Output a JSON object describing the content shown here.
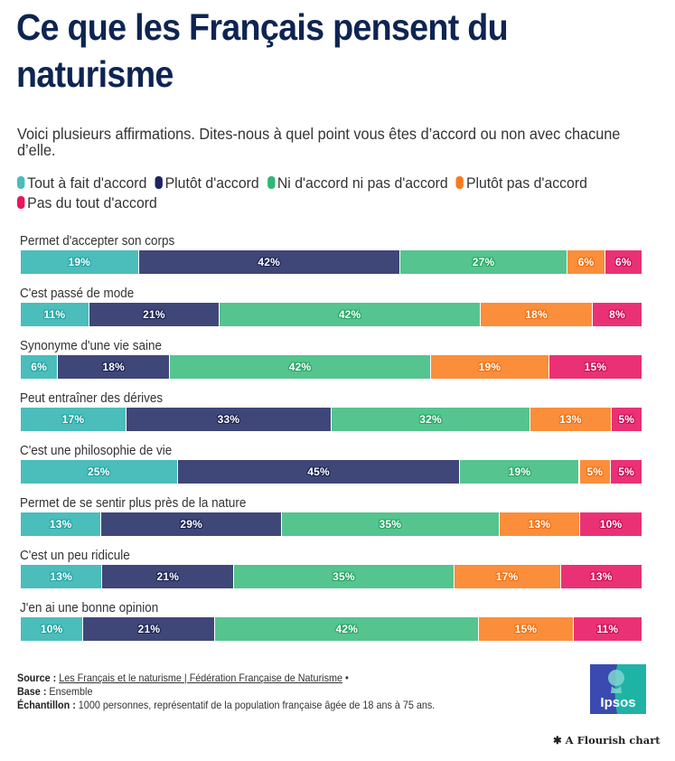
{
  "header": {
    "title": "Ce que les Français pensent du naturisme",
    "subtitle": "Voici plusieurs affirmations. Dites-nous à quel point vous êtes d’accord ou non avec chacune d’elle."
  },
  "legend": [
    {
      "label": "Tout à fait d'accord",
      "color": "#4bbdbb"
    },
    {
      "label": "Plutôt d'accord",
      "color": "#3f4778"
    },
    {
      "label": "Ni d'accord ni pas d'accord",
      "color": "#55c48e"
    },
    {
      "label": "Plutôt pas d'accord",
      "color": "#fb8e3b"
    },
    {
      "label": "Pas du tout d'accord",
      "color": "#eb3175"
    }
  ],
  "chart_data": {
    "type": "bar",
    "orientation": "horizontal",
    "stacked": true,
    "title": "Ce que les Français pensent du naturisme",
    "subtitle": "Voici plusieurs affirmations. Dites-nous à quel point vous êtes d’accord ou non avec chacune d’elle.",
    "xlabel": "",
    "ylabel": "",
    "xlim": [
      0,
      100
    ],
    "unit": "%",
    "legend_position": "top",
    "grid": false,
    "categories": [
      "Permet d'accepter son corps",
      "C'est passé de mode",
      "Synonyme d'une vie saine",
      "Peut entraîner des dérives",
      "C'est une philosophie de vie",
      "Permet de se sentir plus près de la nature",
      "C'est un peu ridicule",
      "J'en ai une bonne opinion"
    ],
    "series": [
      {
        "name": "Tout à fait d'accord",
        "color": "#4bbdbb",
        "label_stroke": "#20a3a1",
        "values": [
          19,
          11,
          6,
          17,
          25,
          13,
          13,
          10
        ]
      },
      {
        "name": "Plutôt d'accord",
        "color": "#3f4778",
        "label_stroke": "#1a2350",
        "values": [
          42,
          21,
          18,
          33,
          45,
          29,
          21,
          21
        ]
      },
      {
        "name": "Ni d'accord ni pas d'accord",
        "color": "#55c48e",
        "label_stroke": "#25a565",
        "values": [
          27,
          42,
          42,
          32,
          19,
          35,
          35,
          42
        ]
      },
      {
        "name": "Plutôt pas d'accord",
        "color": "#fb8e3b",
        "label_stroke": "#ee6d0c",
        "values": [
          6,
          18,
          19,
          13,
          5,
          13,
          17,
          15
        ]
      },
      {
        "name": "Pas du tout d'accord",
        "color": "#eb3175",
        "label_stroke": "#c80a55",
        "values": [
          6,
          8,
          15,
          5,
          5,
          10,
          13,
          11
        ]
      }
    ]
  },
  "footer": {
    "source_label": "Source :",
    "source_link": "Les Français et le naturisme | Fédération Française de Naturisme",
    "source_sep": " •",
    "base_label": "Base :",
    "base_value": " Ensemble",
    "sample_label": "Échantillon :",
    "sample_value": " 1000 personnes, représentatif de la population française âgée de 18 ans à 75 ans."
  },
  "branding": {
    "logo_text": "Ipsos",
    "flourish_credit": "A Flourish chart"
  }
}
